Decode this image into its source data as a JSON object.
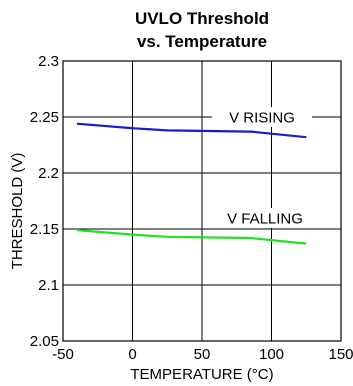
{
  "chart_data": {
    "type": "line",
    "title_line1": "UVLO Threshold",
    "title_line2": "vs. Temperature",
    "xlabel": "TEMPERATURE (°C)",
    "ylabel": "THRESHOLD (V)",
    "xlim": [
      -50,
      150
    ],
    "ylim": [
      2.05,
      2.3
    ],
    "x_ticks": [
      -50,
      0,
      50,
      100,
      150
    ],
    "x_tick_labels": [
      "-50",
      "0",
      "50",
      "100",
      "150"
    ],
    "y_ticks": [
      2.05,
      2.1,
      2.15,
      2.2,
      2.25,
      2.3
    ],
    "y_tick_labels": [
      "2.05",
      "2.1",
      "2.15",
      "2.2",
      "2.25",
      "2.3"
    ],
    "grid": true,
    "series": [
      {
        "name": "V RISING",
        "color": "#1a1acc",
        "x": [
          -40,
          0,
          25,
          85,
          125
        ],
        "y": [
          2.244,
          2.24,
          2.238,
          2.237,
          2.232
        ]
      },
      {
        "name": "V FALLING",
        "color": "#22e022",
        "x": [
          -40,
          0,
          25,
          85,
          125
        ],
        "y": [
          2.149,
          2.145,
          2.143,
          2.142,
          2.137
        ]
      }
    ]
  }
}
